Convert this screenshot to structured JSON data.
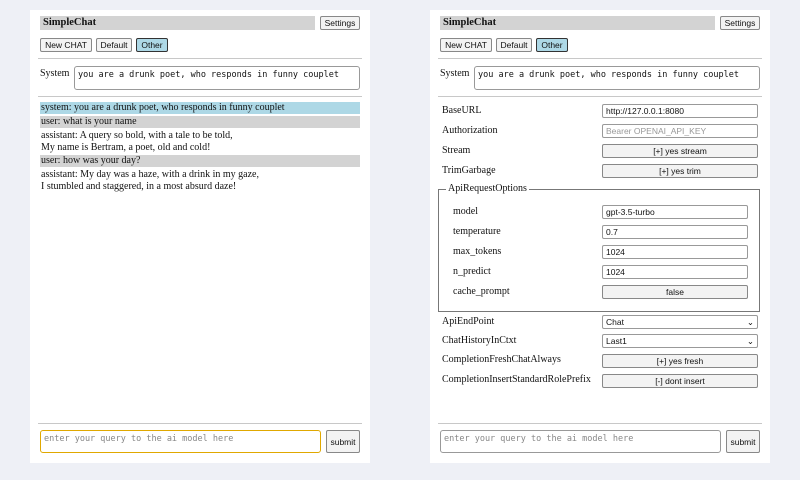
{
  "left": {
    "title": "SimpleChat",
    "settings_label": "Settings",
    "buttons": [
      "New CHAT",
      "Default",
      "Other"
    ],
    "system_label": "System",
    "system_value": "you are a drunk poet, who responds in funny couplet",
    "messages": [
      {
        "role": "system",
        "text": "system: you are a drunk poet, who responds in funny couplet"
      },
      {
        "role": "user",
        "text": "user: what is your name"
      },
      {
        "role": "assistant",
        "line1": "assistant: A query so bold, with a tale to be told,",
        "line2": "My name is Bertram, a poet, old and cold!"
      },
      {
        "role": "user",
        "text": "user: how was your day?"
      },
      {
        "role": "assistant",
        "line1": "assistant: My day was a haze, with a drink in my gaze,",
        "line2": "I stumbled and staggered, in a most absurd daze!"
      }
    ],
    "query_placeholder": "enter your query to the ai model here",
    "submit_label": "submit"
  },
  "right": {
    "title": "SimpleChat",
    "settings_label": "Settings",
    "buttons": [
      "New CHAT",
      "Default",
      "Other"
    ],
    "system_label": "System",
    "system_value": "you are a drunk poet, who responds in funny couplet",
    "settings": {
      "base_url": {
        "label": "BaseURL",
        "value": "http://127.0.0.1:8080"
      },
      "authorization": {
        "label": "Authorization",
        "placeholder": "Bearer OPENAI_API_KEY"
      },
      "stream": {
        "label": "Stream",
        "value": "[+] yes stream"
      },
      "trim": {
        "label": "TrimGarbage",
        "value": "[+] yes trim"
      },
      "api_options_legend": "ApiRequestOptions",
      "model": {
        "label": "model",
        "value": "gpt-3.5-turbo"
      },
      "temperature": {
        "label": "temperature",
        "value": "0.7"
      },
      "max_tokens": {
        "label": "max_tokens",
        "value": "1024"
      },
      "n_predict": {
        "label": "n_predict",
        "value": "1024"
      },
      "cache_prompt": {
        "label": "cache_prompt",
        "value": "false"
      },
      "api_endpoint": {
        "label": "ApiEndPoint",
        "value": "Chat"
      },
      "chat_history": {
        "label": "ChatHistoryInCtxt",
        "value": "Last1"
      },
      "fresh_chat": {
        "label": "CompletionFreshChatAlways",
        "value": "[+] yes fresh"
      },
      "role_prefix": {
        "label": "CompletionInsertStandardRolePrefix",
        "value": "[-] dont insert"
      }
    },
    "query_placeholder": "enter your query to the ai model here",
    "submit_label": "submit"
  },
  "colors": {
    "system_msg": "#add8e6",
    "user_msg": "#d3d3d3",
    "selected_button": "#add8e6",
    "input_focus": "#e0a800"
  }
}
